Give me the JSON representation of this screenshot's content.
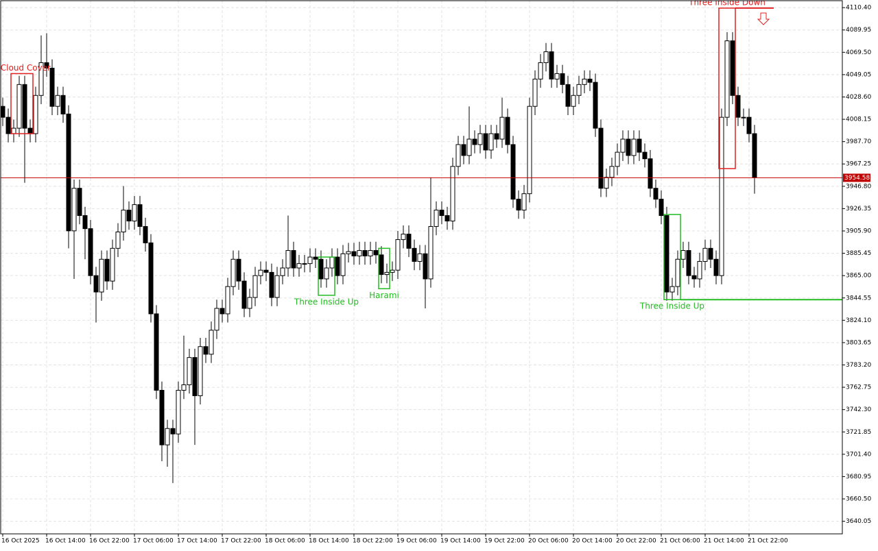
{
  "chart_data": {
    "type": "candlestick",
    "open": [
      4020,
      4010,
      3995,
      4000,
      4040,
      4000,
      3995,
      4030,
      4060,
      4055,
      4020,
      4030,
      4013,
      3906,
      3945,
      3920,
      3908,
      3865,
      3850,
      3880,
      3860,
      3890,
      3905,
      3925,
      3915,
      3930,
      3910,
      3895,
      3830,
      3760,
      3710,
      3725,
      3720,
      3760,
      3765,
      3790,
      3755,
      3800,
      3793,
      3815,
      3835,
      3830,
      3855,
      3880,
      3860,
      3835,
      3845,
      3865,
      3870,
      3868,
      3845,
      3865,
      3872,
      3888,
      3872,
      3876,
      3876,
      3882,
      3880,
      3862,
      3872,
      3882,
      3865,
      3885,
      3887,
      3883,
      3888,
      3883,
      3888,
      3884,
      3866,
      3868,
      3870,
      3898,
      3903,
      3890,
      3878,
      3885,
      3862,
      3910,
      3925,
      3920,
      3915,
      3965,
      3985,
      3975,
      3990,
      3985,
      3995,
      3980,
      3995,
      3990,
      4010,
      3985,
      3935,
      3925,
      3940,
      4020,
      4045,
      4060,
      4070,
      4045,
      4050,
      4040,
      4020,
      4030,
      4040,
      4045,
      4042,
      4000,
      3945,
      3955,
      3965,
      3978,
      3990,
      3975,
      3990,
      3978,
      3972,
      3945,
      3935,
      3920,
      3850,
      3855,
      3880,
      3888,
      3865,
      3862,
      3878,
      3890,
      3880,
      3865,
      4010,
      4080,
      4030,
      4010,
      4010,
      3995
    ],
    "high": [
      4028,
      4018,
      4008,
      4048,
      4048,
      4008,
      4038,
      4085,
      4087,
      4063,
      4038,
      4038,
      4021,
      3953,
      3953,
      3928,
      3916,
      3873,
      3888,
      3888,
      3898,
      3913,
      3947,
      3933,
      3938,
      3938,
      3918,
      3903,
      3838,
      3768,
      3733,
      3733,
      3768,
      3810,
      3798,
      3798,
      3808,
      3808,
      3823,
      3843,
      3843,
      3863,
      3888,
      3888,
      3868,
      3853,
      3873,
      3878,
      3878,
      3876,
      3873,
      3880,
      3920,
      3896,
      3884,
      3884,
      3890,
      3890,
      3888,
      3880,
      3890,
      3890,
      3893,
      3895,
      3895,
      3896,
      3896,
      3896,
      3896,
      3892,
      3876,
      3878,
      3906,
      3911,
      3911,
      3898,
      3893,
      3893,
      3955,
      3933,
      3933,
      3928,
      3973,
      3993,
      3993,
      4020,
      3998,
      4003,
      4003,
      4003,
      4003,
      4028,
      4018,
      3993,
      3943,
      3948,
      4028,
      4053,
      4068,
      4078,
      4078,
      4058,
      4058,
      4048,
      4038,
      4048,
      4053,
      4053,
      4050,
      4008,
      3963,
      3973,
      3986,
      3998,
      3998,
      3998,
      3998,
      3986,
      3980,
      3953,
      3943,
      3928,
      3863,
      3888,
      3896,
      3896,
      3873,
      3886,
      3898,
      3898,
      3888,
      4018,
      4088,
      4088,
      4038,
      4018,
      4018,
      4003
    ],
    "low": [
      4002,
      3987,
      3987,
      3992,
      3950,
      3987,
      3987,
      4022,
      4047,
      4012,
      4012,
      4005,
      3890,
      3862,
      3912,
      3880,
      3857,
      3822,
      3842,
      3852,
      3852,
      3882,
      3897,
      3907,
      3907,
      3902,
      3887,
      3822,
      3752,
      3695,
      3690,
      3675,
      3712,
      3752,
      3757,
      3710,
      3747,
      3785,
      3785,
      3807,
      3822,
      3822,
      3847,
      3852,
      3827,
      3827,
      3837,
      3857,
      3860,
      3837,
      3837,
      3857,
      3864,
      3864,
      3864,
      3868,
      3868,
      3872,
      3854,
      3854,
      3864,
      3857,
      3857,
      3877,
      3875,
      3875,
      3875,
      3875,
      3876,
      3858,
      3858,
      3860,
      3862,
      3890,
      3882,
      3870,
      3870,
      3835,
      3854,
      3902,
      3912,
      3907,
      3907,
      3957,
      3967,
      3967,
      3977,
      3977,
      3972,
      3972,
      3982,
      3982,
      3977,
      3927,
      3917,
      3917,
      3932,
      4012,
      4037,
      4052,
      4037,
      4037,
      4032,
      4012,
      4012,
      4022,
      4032,
      4034,
      3992,
      3937,
      3937,
      3947,
      3957,
      3970,
      3967,
      3967,
      3970,
      3964,
      3937,
      3927,
      3912,
      3842,
      3842,
      3847,
      3872,
      3857,
      3854,
      3854,
      3870,
      3872,
      3857,
      3857,
      4002,
      4022,
      4002,
      4002,
      3987,
      3940
    ],
    "close": [
      4010,
      3995,
      4000,
      4040,
      4000,
      3995,
      4030,
      4060,
      4055,
      4020,
      4030,
      4013,
      3906,
      3945,
      3920,
      3908,
      3865,
      3850,
      3880,
      3860,
      3890,
      3905,
      3925,
      3915,
      3930,
      3910,
      3895,
      3830,
      3760,
      3710,
      3725,
      3720,
      3760,
      3765,
      3790,
      3755,
      3800,
      3793,
      3815,
      3835,
      3830,
      3855,
      3880,
      3860,
      3835,
      3845,
      3865,
      3870,
      3868,
      3845,
      3865,
      3872,
      3888,
      3872,
      3876,
      3876,
      3882,
      3880,
      3862,
      3872,
      3882,
      3865,
      3885,
      3887,
      3883,
      3888,
      3883,
      3888,
      3884,
      3866,
      3868,
      3870,
      3898,
      3903,
      3890,
      3878,
      3885,
      3862,
      3910,
      3925,
      3920,
      3915,
      3965,
      3985,
      3975,
      3990,
      3985,
      3995,
      3980,
      3995,
      3990,
      4010,
      3985,
      3935,
      3925,
      3940,
      4020,
      4045,
      4060,
      4070,
      4045,
      4050,
      4040,
      4020,
      4030,
      4040,
      4045,
      4042,
      4000,
      3945,
      3955,
      3965,
      3978,
      3990,
      3975,
      3990,
      3978,
      3972,
      3945,
      3935,
      3920,
      3850,
      3855,
      3880,
      3888,
      3865,
      3862,
      3878,
      3890,
      3880,
      3865,
      4010,
      4080,
      4030,
      4010,
      4010,
      3995,
      3955
    ],
    "xticks": [
      {
        "value": 0,
        "label": "16 Oct 2025"
      },
      {
        "value": 8,
        "label": "16 Oct 14:00"
      },
      {
        "value": 16,
        "label": "16 Oct 22:00"
      },
      {
        "value": 24,
        "label": "17 Oct 06:00"
      },
      {
        "value": 32,
        "label": "17 Oct 14:00"
      },
      {
        "value": 40,
        "label": "17 Oct 22:00"
      },
      {
        "value": 48,
        "label": "18 Oct 06:00"
      },
      {
        "value": 56,
        "label": "18 Oct 14:00"
      },
      {
        "value": 64,
        "label": "18 Oct 22:00"
      },
      {
        "value": 72,
        "label": "19 Oct 06:00"
      },
      {
        "value": 80,
        "label": "19 Oct 14:00"
      },
      {
        "value": 88,
        "label": "19 Oct 22:00"
      },
      {
        "value": 96,
        "label": "20 Oct 06:00"
      },
      {
        "value": 104,
        "label": "20 Oct 14:00"
      },
      {
        "value": 112,
        "label": "20 Oct 22:00"
      },
      {
        "value": 120,
        "label": "21 Oct 06:00"
      },
      {
        "value": 128,
        "label": "21 Oct 14:00"
      },
      {
        "value": 136,
        "label": "21 Oct 22:00"
      }
    ],
    "ylim": [
      3628.5,
      4117.4
    ],
    "yticks": [
      {
        "value": 4110.4,
        "label": "4110.40"
      },
      {
        "value": 4089.95,
        "label": "4089.95"
      },
      {
        "value": 4069.5,
        "label": "4069.50"
      },
      {
        "value": 4049.05,
        "label": "4049.05"
      },
      {
        "value": 4028.6,
        "label": "4028.60"
      },
      {
        "value": 4008.15,
        "label": "4008.15"
      },
      {
        "value": 3987.7,
        "label": "3987.70"
      },
      {
        "value": 3967.25,
        "label": "3967.25"
      },
      {
        "value": 3946.8,
        "label": "3946.80"
      },
      {
        "value": 3926.35,
        "label": "3926.35"
      },
      {
        "value": 3905.9,
        "label": "3905.90"
      },
      {
        "value": 3885.45,
        "label": "3885.45"
      },
      {
        "value": 3865,
        "label": "3865.00"
      },
      {
        "value": 3844.55,
        "label": "3844.55"
      },
      {
        "value": 3824.1,
        "label": "3824.10"
      },
      {
        "value": 3803.65,
        "label": "3803.65"
      },
      {
        "value": 3783.2,
        "label": "3783.20"
      },
      {
        "value": 3762.75,
        "label": "3762.75"
      },
      {
        "value": 3742.3,
        "label": "3742.30"
      },
      {
        "value": 3721.85,
        "label": "3721.85"
      },
      {
        "value": 3701.4,
        "label": "3701.40"
      },
      {
        "value": 3680.95,
        "label": "3680.95"
      },
      {
        "value": 3660.5,
        "label": "3660.50"
      },
      {
        "value": 3640.05,
        "label": "3640.05"
      }
    ],
    "grid": true,
    "current_price": 3954.58,
    "patterns": [
      {
        "label": "k Cloud Cover",
        "color": "#e02020",
        "from": 2,
        "to": 5,
        "low": 3995,
        "high": 4050
      },
      {
        "label": "Three Inside Up",
        "color": "#22bb22",
        "from": 58,
        "to": 60,
        "low": 3847,
        "high": 3882
      },
      {
        "label": "Harami",
        "color": "#22bb22",
        "from": 69,
        "to": 70,
        "low": 3853,
        "high": 3890
      },
      {
        "label": "Three Inside Up",
        "color": "#22bb22",
        "from": 121,
        "to": 123,
        "low": 3843,
        "high": 3921
      },
      {
        "label": "Three Inside Down",
        "color": "#e02020",
        "from": 131,
        "to": 133,
        "low": 3963,
        "high": 4110
      }
    ]
  }
}
